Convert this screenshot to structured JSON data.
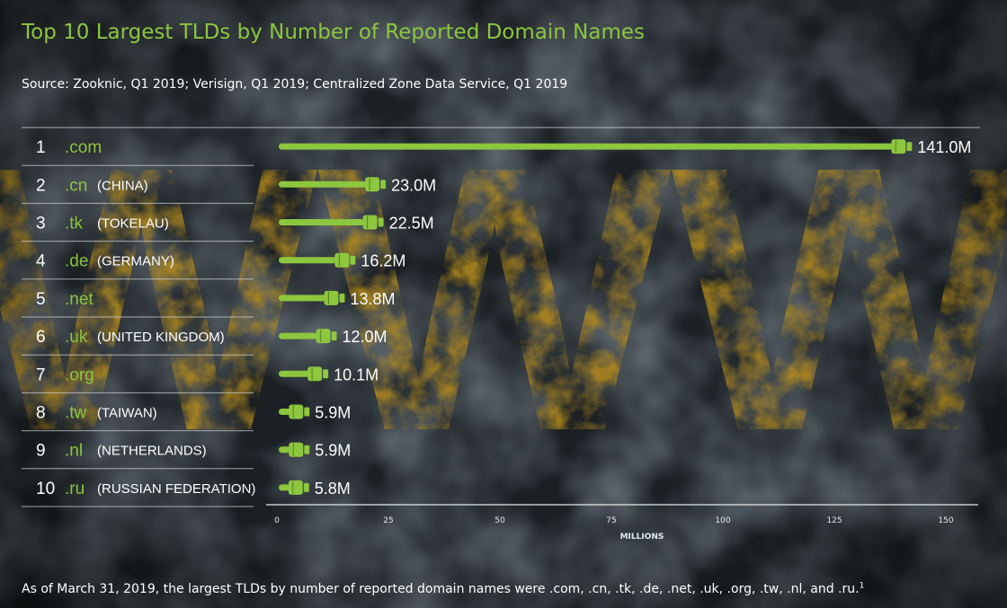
{
  "title": "Top 10 Largest TLDs by Number of Reported Domain Names",
  "source": "Source: Zooknic, Q1 2019; Verisign, Q1 2019; Centralized Zone Data Service, Q1 2019",
  "caption": "As of March 31, 2019, the largest TLDs by number of reported domain names were .com, .cn, .tk, .de, .net, .uk, .org, .tw, .nl, and .ru.",
  "caption_footnote": "1",
  "background": {
    "watermark_text": "WWW"
  },
  "colors": {
    "accent": "#8dc63f",
    "text": "#ffffff",
    "background": "#1b2024",
    "watermark": "#b38a1c"
  },
  "chart_data": {
    "type": "bar",
    "orientation": "horizontal",
    "xlabel": "MILLIONS",
    "xlim": [
      0,
      150
    ],
    "xticks": [
      0,
      25,
      50,
      75,
      100,
      125,
      150
    ],
    "grid": false,
    "categories": [
      ".com",
      ".cn",
      ".tk",
      ".de",
      ".net",
      ".uk",
      ".org",
      ".tw",
      ".nl",
      ".ru"
    ],
    "ranks": [
      "1",
      "2",
      "3",
      "4",
      "5",
      "6",
      "7",
      "8",
      "9",
      "10"
    ],
    "countries": [
      "",
      "(CHINA)",
      "(TOKELAU)",
      "(GERMANY)",
      "",
      "(UNITED KINGDOM)",
      "",
      "(TAIWAN)",
      "(NETHERLANDS)",
      "(RUSSIAN FEDERATION)"
    ],
    "values": [
      141.0,
      23.0,
      22.5,
      16.2,
      13.8,
      12.0,
      10.1,
      5.9,
      5.9,
      5.8
    ],
    "value_labels": [
      "141.0M",
      "23.0M",
      "22.5M",
      "16.2M",
      "13.8M",
      "12.0M",
      "10.1M",
      "5.9M",
      "5.9M",
      "5.8M"
    ]
  }
}
